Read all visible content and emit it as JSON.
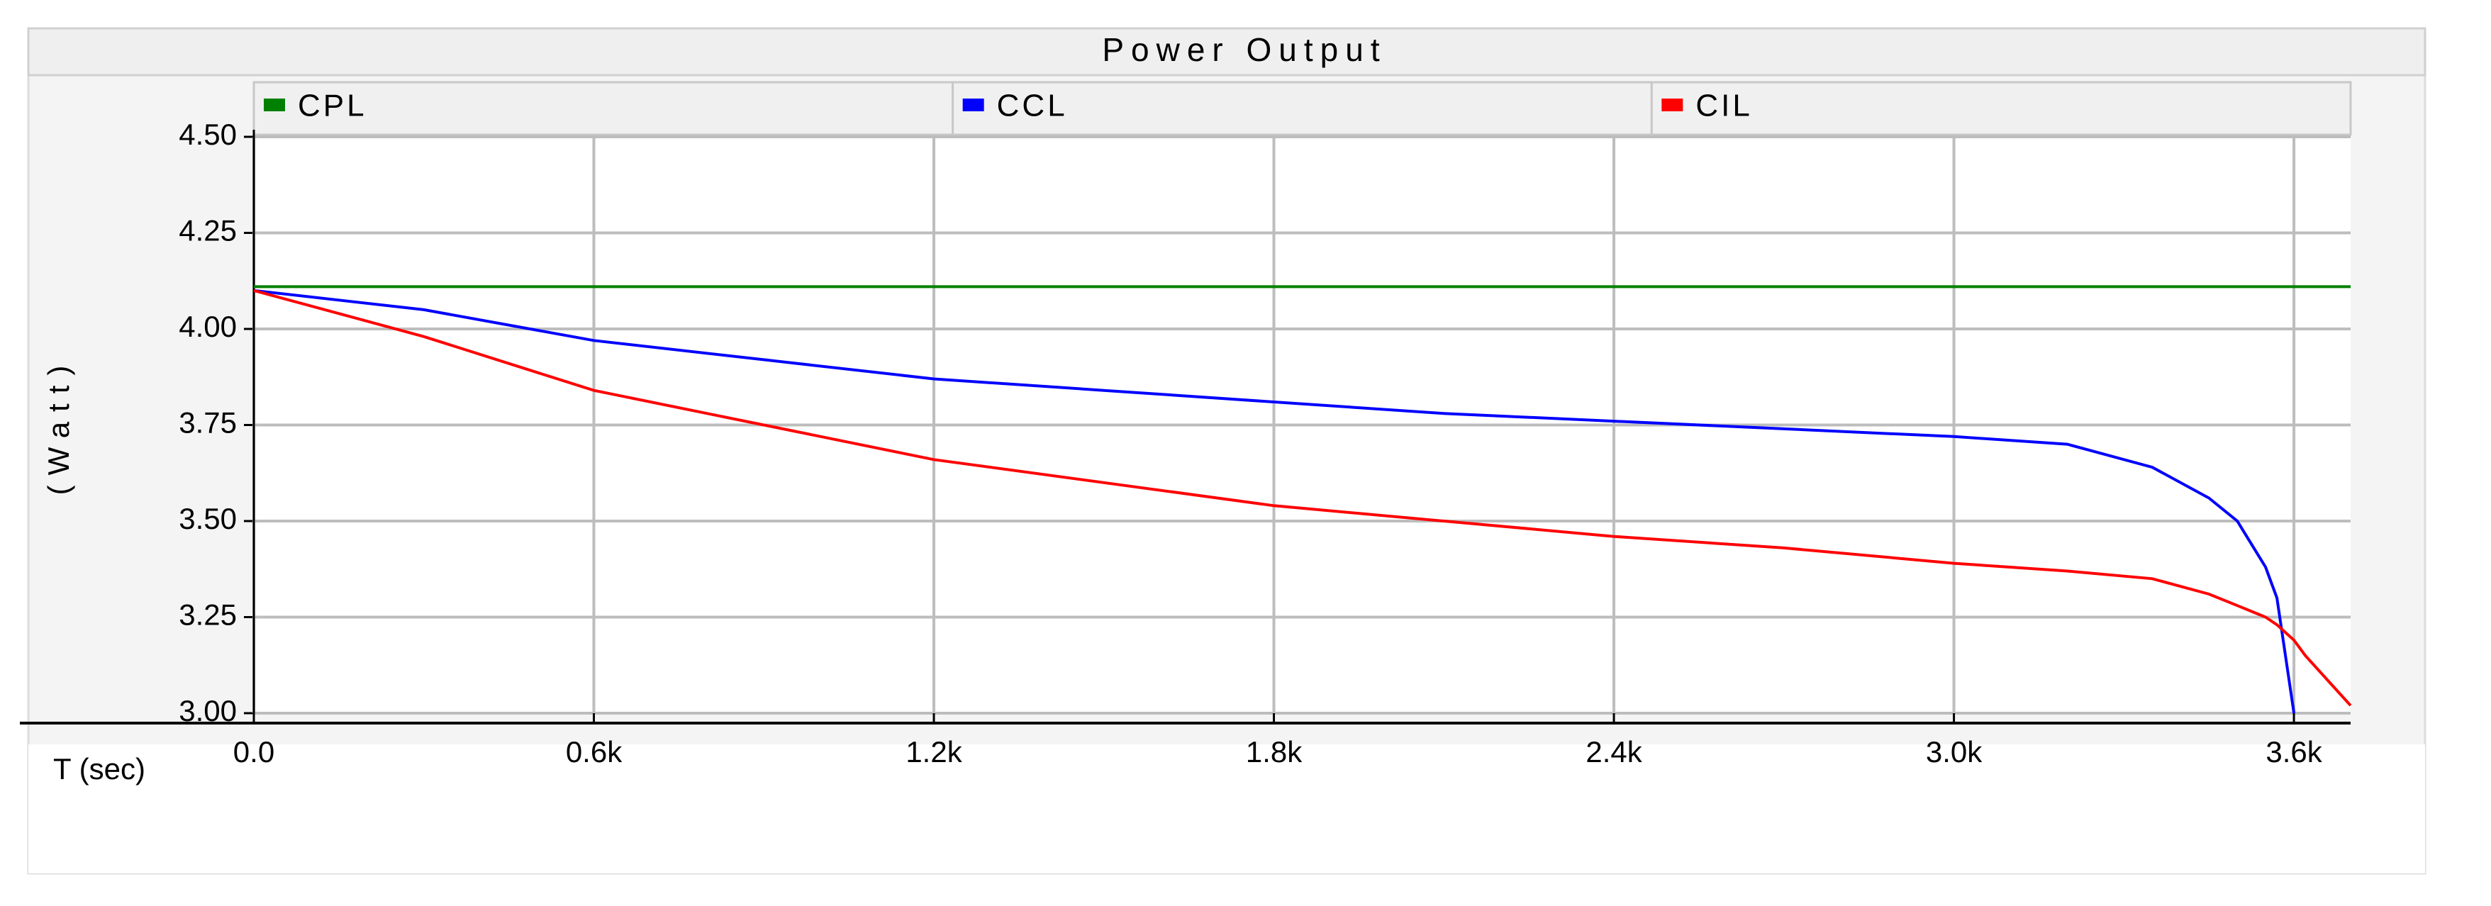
{
  "chart_data": {
    "type": "line",
    "title": "Power Output",
    "xlabel": "T (sec)",
    "ylabel": "(Watt)",
    "x": [
      0,
      300,
      600,
      900,
      1200,
      1500,
      1800,
      2100,
      2400,
      2700,
      3000,
      3200,
      3350,
      3450,
      3500,
      3550,
      3570,
      3600,
      3620,
      3700
    ],
    "series": [
      {
        "name": "CPL",
        "color": "#008000",
        "values": [
          4.11,
          4.11,
          4.11,
          4.11,
          4.11,
          4.11,
          4.11,
          4.11,
          4.11,
          4.11,
          4.11,
          4.11,
          4.11,
          4.11,
          4.11,
          4.11,
          4.11,
          4.11,
          4.11,
          4.11
        ]
      },
      {
        "name": "CCL",
        "color": "#0000ff",
        "values": [
          4.1,
          4.05,
          3.97,
          3.92,
          3.87,
          3.84,
          3.81,
          3.78,
          3.76,
          3.74,
          3.72,
          3.7,
          3.64,
          3.56,
          3.5,
          3.38,
          3.3,
          3.0,
          null,
          null
        ]
      },
      {
        "name": "CIL",
        "color": "#ff0000",
        "values": [
          4.1,
          3.98,
          3.84,
          3.75,
          3.66,
          3.6,
          3.54,
          3.5,
          3.46,
          3.43,
          3.39,
          3.37,
          3.35,
          3.31,
          3.28,
          3.25,
          3.23,
          3.19,
          3.15,
          3.02
        ]
      }
    ],
    "xlim": [
      0,
      3700
    ],
    "xticks": [
      {
        "value": 0,
        "label": "0.0"
      },
      {
        "value": 600,
        "label": "0.6k"
      },
      {
        "value": 1200,
        "label": "1.2k"
      },
      {
        "value": 1800,
        "label": "1.8k"
      },
      {
        "value": 2400,
        "label": "2.4k"
      },
      {
        "value": 3000,
        "label": "3.0k"
      },
      {
        "value": 3600,
        "label": "3.6k"
      }
    ],
    "ylim": [
      3.0,
      4.5
    ],
    "yticks": [
      {
        "value": 3.0,
        "label": "3.00"
      },
      {
        "value": 3.25,
        "label": "3.25"
      },
      {
        "value": 3.5,
        "label": "3.50"
      },
      {
        "value": 3.75,
        "label": "3.75"
      },
      {
        "value": 4.0,
        "label": "4.00"
      },
      {
        "value": 4.25,
        "label": "4.25"
      },
      {
        "value": 4.5,
        "label": "4.50"
      }
    ],
    "grid": true
  }
}
